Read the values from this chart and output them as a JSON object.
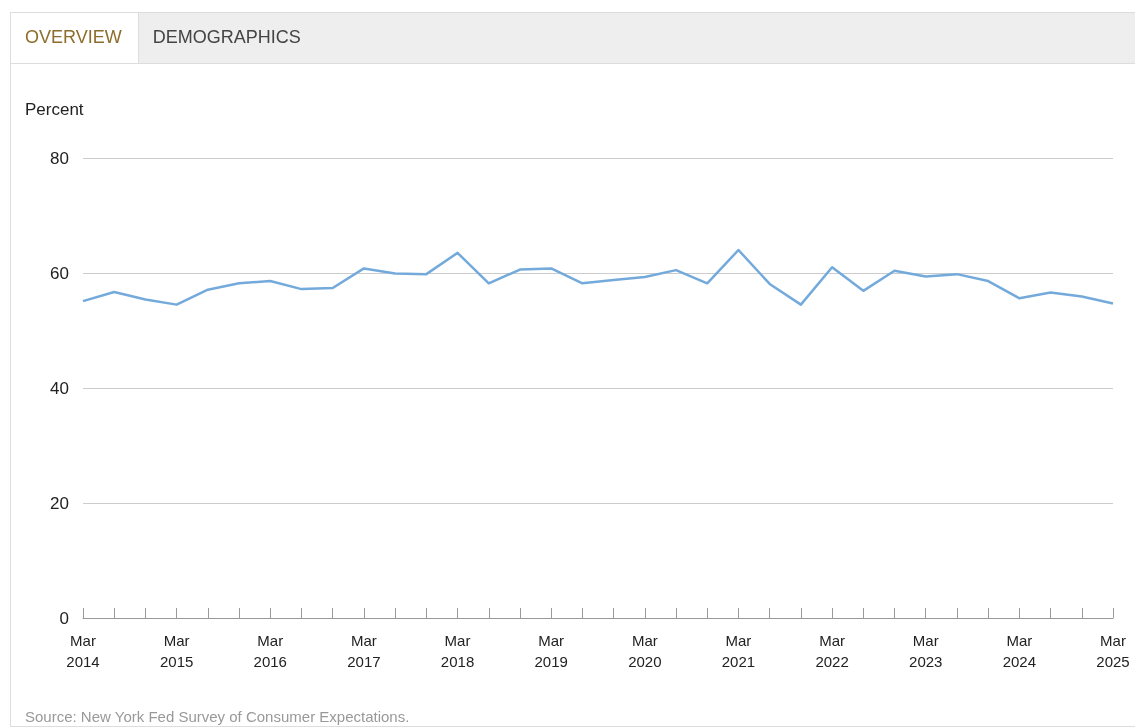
{
  "chart_data": {
    "type": "line",
    "ylabel": "Percent",
    "annotations": [
      "OVERVIEW",
      "DEMOGRAPHICS",
      "Source: New York Fed Survey of Consumer Expectations."
    ],
    "categories": [
      "Mar 2014",
      null,
      null,
      "Mar 2015",
      null,
      null,
      "Mar 2016",
      null,
      null,
      "Mar 2017",
      null,
      null,
      "Mar 2018",
      null,
      null,
      "Mar 2019",
      null,
      null,
      "Mar 2020",
      null,
      null,
      "Mar 2021",
      null,
      null,
      "Mar 2022",
      null,
      null,
      "Mar 2023",
      null,
      null,
      "Mar 2024",
      null,
      null,
      "Mar 2025"
    ],
    "series": [
      {
        "color": "#74aadb",
        "values": [
          55.1,
          56.7,
          55.4,
          54.5,
          57.1,
          58.2,
          58.6,
          57.2,
          57.4,
          60.8,
          59.9,
          59.8,
          63.5,
          58.2,
          60.6,
          60.8,
          58.2,
          58.8,
          59.3,
          60.5,
          58.2,
          64.0,
          58.1,
          54.5,
          61.0,
          56.9,
          60.4,
          59.4,
          59.8,
          58.6,
          55.6,
          56.6,
          55.9,
          54.7
        ]
      }
    ],
    "ylim": [
      0,
      80
    ],
    "yticks": [
      0,
      20,
      40,
      60,
      80
    ],
    "grid": "y",
    "marker": "none",
    "line_style": "solid"
  }
}
